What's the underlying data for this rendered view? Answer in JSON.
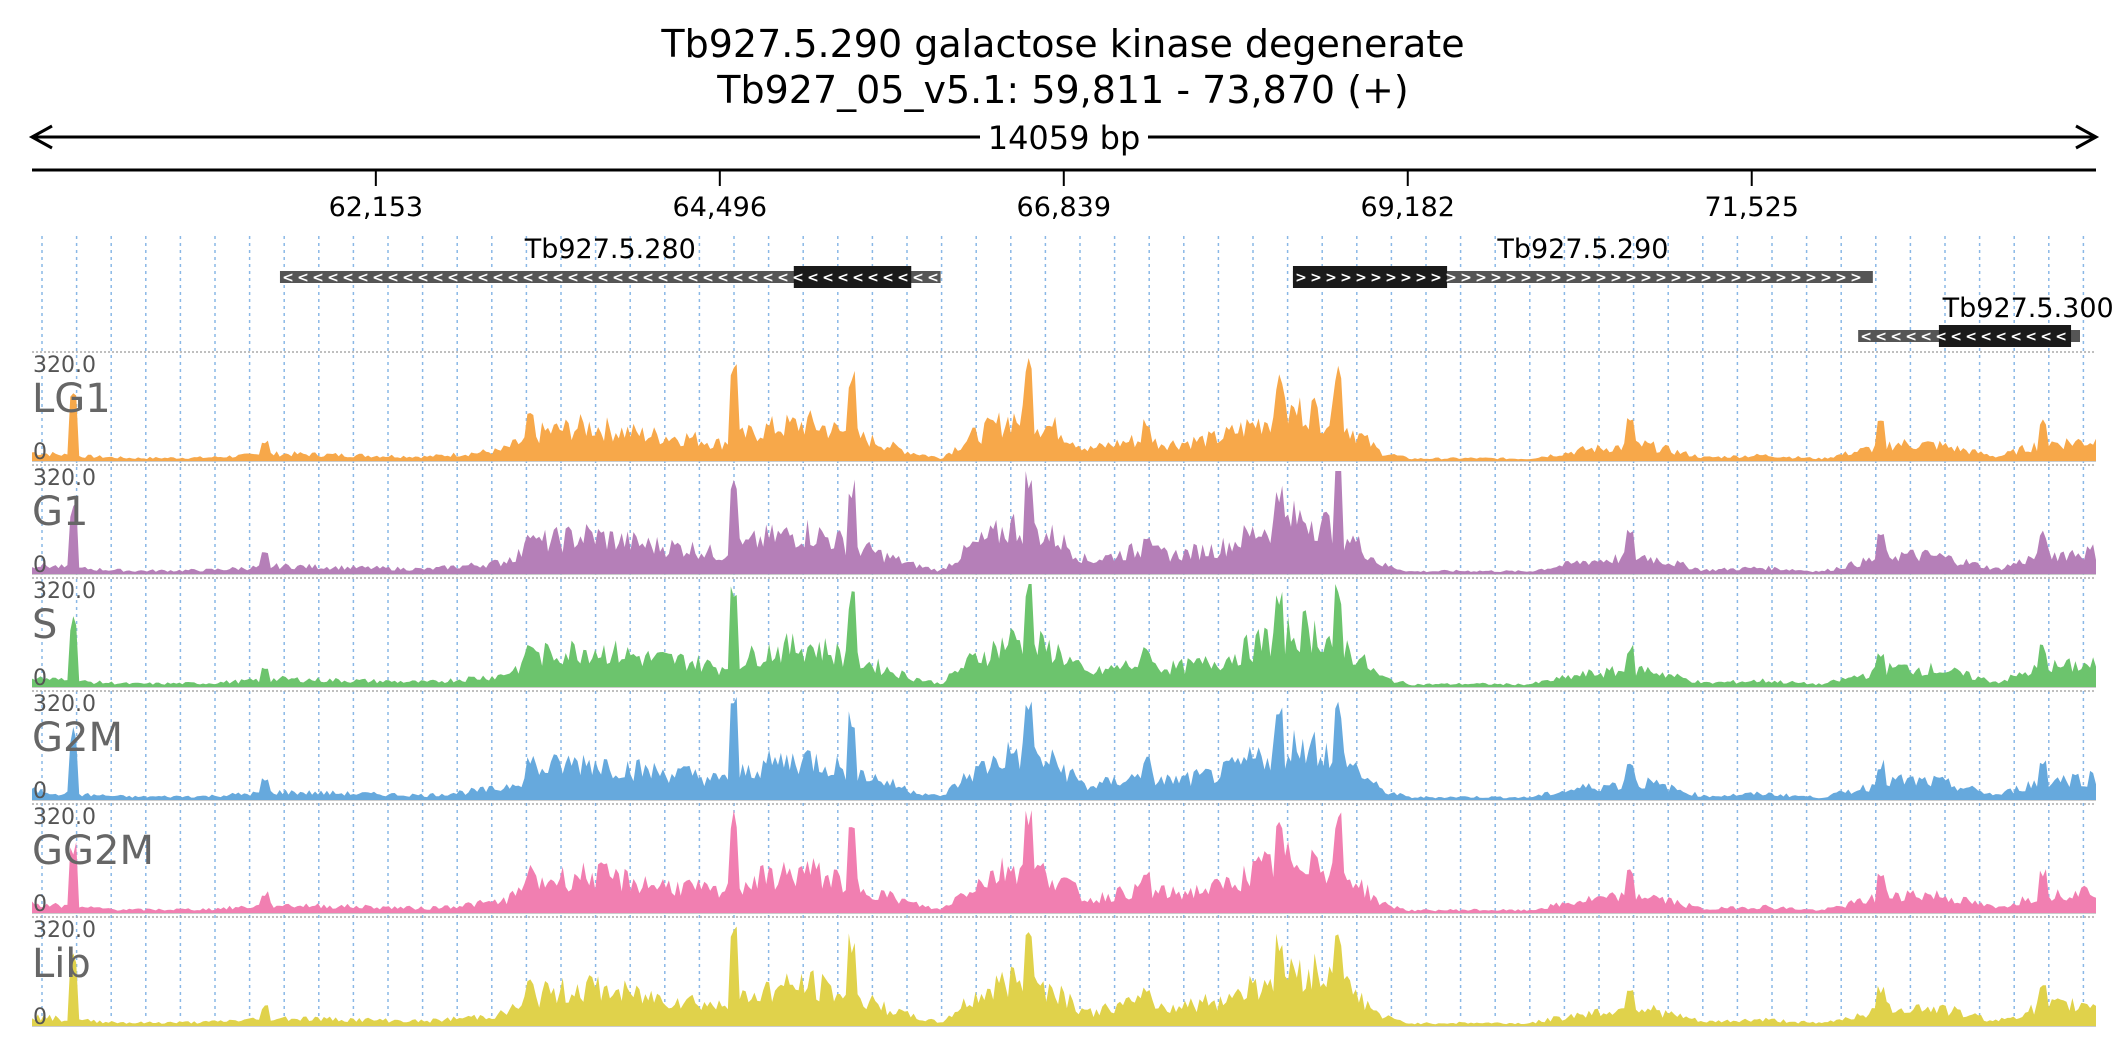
{
  "header": {
    "title": "Tb927.5.290  galactose kinase  degenerate",
    "subtitle": "Tb927_05_v5.1: 59,811 - 73,870 (+)",
    "span_label": "14059 bp"
  },
  "chart_data": {
    "type": "area",
    "xlim": [
      59811,
      73870
    ],
    "x_ticks": [
      62153,
      64496,
      66839,
      69182,
      71525
    ],
    "x_tick_labels": [
      "62,153",
      "64,496",
      "66,839",
      "69,182",
      "71,525"
    ],
    "grid": "vertical dotted",
    "genes": [
      {
        "name": "Tb927.5.280",
        "start": 61500,
        "end": 66000,
        "strand": "-",
        "cds_start": 65000,
        "cds_end": 65800
      },
      {
        "name": "Tb927.5.290",
        "start": 68400,
        "end": 72350,
        "strand": "+",
        "cds_start": 68400,
        "cds_end": 69450
      },
      {
        "name": "Tb927.5.300",
        "start": 72250,
        "end": 73900,
        "strand": "-",
        "cds_start": 72800,
        "cds_end": 73700
      }
    ],
    "tracks": [
      {
        "name": "LG1",
        "color": "#f7a84a",
        "ymax": 320.0,
        "ymin": 0
      },
      {
        "name": "G1",
        "color": "#b57fb8",
        "ymax": 320.0,
        "ymin": 0
      },
      {
        "name": "S",
        "color": "#6cc46d",
        "ymax": 320.0,
        "ymin": 0
      },
      {
        "name": "G2M",
        "color": "#66a9dd",
        "ymax": 320.0,
        "ymin": 0
      },
      {
        "name": "GG2M",
        "color": "#f17fb1",
        "ymax": 320.0,
        "ymin": 0
      },
      {
        "name": "Lib",
        "color": "#e0d24b",
        "ymax": 320.0,
        "ymin": 0
      }
    ],
    "coverage_profile": {
      "description_points": [
        [
          59811,
          30
        ],
        [
          60100,
          18
        ],
        [
          60500,
          10
        ],
        [
          61000,
          12
        ],
        [
          61500,
          25
        ],
        [
          62000,
          20
        ],
        [
          62500,
          15
        ],
        [
          63000,
          35
        ],
        [
          63300,
          100
        ],
        [
          63600,
          120
        ],
        [
          64000,
          90
        ],
        [
          64300,
          80
        ],
        [
          64500,
          60
        ],
        [
          64800,
          110
        ],
        [
          65100,
          130
        ],
        [
          65400,
          90
        ],
        [
          65800,
          30
        ],
        [
          66000,
          10
        ],
        [
          66200,
          80
        ],
        [
          66500,
          150
        ],
        [
          66800,
          110
        ],
        [
          67000,
          40
        ],
        [
          67300,
          70
        ],
        [
          67600,
          60
        ],
        [
          67900,
          80
        ],
        [
          68200,
          140
        ],
        [
          68500,
          180
        ],
        [
          68800,
          110
        ],
        [
          69000,
          30
        ],
        [
          69200,
          8
        ],
        [
          69600,
          10
        ],
        [
          70000,
          8
        ],
        [
          70400,
          40
        ],
        [
          70800,
          55
        ],
        [
          71200,
          12
        ],
        [
          71600,
          20
        ],
        [
          72000,
          8
        ],
        [
          72500,
          60
        ],
        [
          72800,
          55
        ],
        [
          73200,
          15
        ],
        [
          73500,
          60
        ],
        [
          73870,
          70
        ]
      ],
      "spikes": [
        [
          60100,
          200
        ],
        [
          61400,
          60
        ],
        [
          63200,
          130
        ],
        [
          64600,
          290
        ],
        [
          65400,
          260
        ],
        [
          66600,
          310
        ],
        [
          67400,
          120
        ],
        [
          68300,
          260
        ],
        [
          68700,
          290
        ],
        [
          70700,
          120
        ],
        [
          72400,
          110
        ],
        [
          73500,
          120
        ]
      ]
    }
  }
}
